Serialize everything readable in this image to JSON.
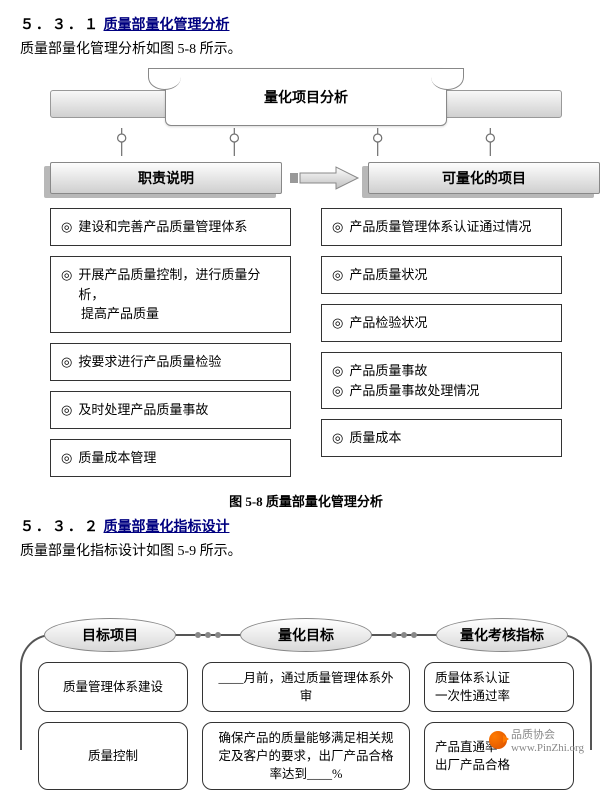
{
  "section1": {
    "number": "５．３．１",
    "title": "质量部量化管理分析",
    "intro": "质量部量化管理分析如图 5-8 所示。"
  },
  "banner_title": "量化项目分析",
  "left_header": "职责说明",
  "right_header": "可量化的项目",
  "left_items": [
    [
      "建设和完善产品质量管理体系"
    ],
    [
      "开展产品质量控制，进行质量分析，",
      "提高产品质量"
    ],
    [
      "按要求进行产品质量检验"
    ],
    [
      "及时处理产品质量事故"
    ],
    [
      "质量成本管理"
    ]
  ],
  "right_items": [
    [
      "产品质量管理体系认证通过情况"
    ],
    [
      "产品质量状况"
    ],
    [
      "产品检验状况"
    ],
    [
      "产品质量事故",
      "产品质量事故处理情况"
    ],
    [
      "质量成本"
    ]
  ],
  "bullet": "◎",
  "figure_caption": "图 5-8   质量部量化管理分析",
  "section2": {
    "number": "５．３．２",
    "title": "质量部量化指标设计",
    "intro": "质量部量化指标设计如图 5-9 所示。"
  },
  "d2": {
    "headers": [
      "目标项目",
      "量化目标",
      "量化考核指标"
    ],
    "rows": [
      {
        "c1": "质量管理体系建设",
        "c2": "____月前，通过质量管理体系外审",
        "c3": "质量体系认证\n一次性通过率"
      },
      {
        "c1": "质量控制",
        "c2": "确保产品的质量能够满足相关规定及客户的要求，出厂产品合格率达到____%",
        "c3": "产品直通率\n出厂产品合格"
      }
    ]
  },
  "watermark": {
    "text1": "品质协会",
    "text2": "www.PinZhi.org"
  },
  "colors": {
    "ink": "#000000",
    "link": "#000080",
    "border": "#333333",
    "grad_light": "#fdfdfd",
    "grad_dark": "#cfcfcf",
    "connector": "#707070"
  }
}
